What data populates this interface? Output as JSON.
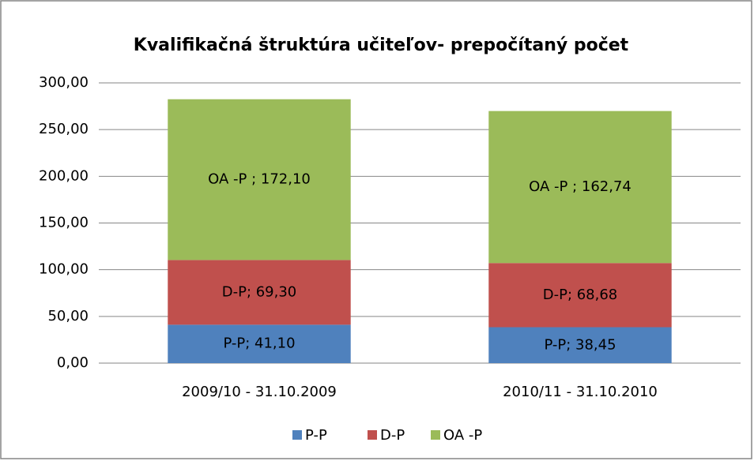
{
  "chart_data": {
    "type": "stacked_bar",
    "title": "Kvalifikačná štruktúra učiteľov- prepočítaný počet",
    "categories": [
      "2009/10 - 31.10.2009",
      "2010/11 - 31.10.2010"
    ],
    "series": [
      {
        "name": "P-P",
        "color": "#4f81bd",
        "values": [
          41.1,
          38.45
        ],
        "value_labels": [
          "P-P; 41,10",
          "P-P; 38,45"
        ]
      },
      {
        "name": "D-P",
        "color": "#c0504d",
        "values": [
          69.3,
          68.68
        ],
        "value_labels": [
          "D-P; 69,30",
          "D-P; 68,68"
        ]
      },
      {
        "name": "OA -P",
        "color": "#9bbb59",
        "values": [
          172.1,
          162.74
        ],
        "value_labels": [
          "OA -P ; 172,10",
          "OA -P ; 162,74"
        ]
      }
    ],
    "ylim": [
      0,
      300
    ],
    "yticks": [
      {
        "value": 0,
        "label": "0,00"
      },
      {
        "value": 50,
        "label": "50,00"
      },
      {
        "value": 100,
        "label": "100,00"
      },
      {
        "value": 150,
        "label": "150,00"
      },
      {
        "value": 200,
        "label": "200,00"
      },
      {
        "value": 250,
        "label": "250,00"
      },
      {
        "value": 300,
        "label": "300,00"
      }
    ],
    "grid": true,
    "legend": "bottom"
  }
}
